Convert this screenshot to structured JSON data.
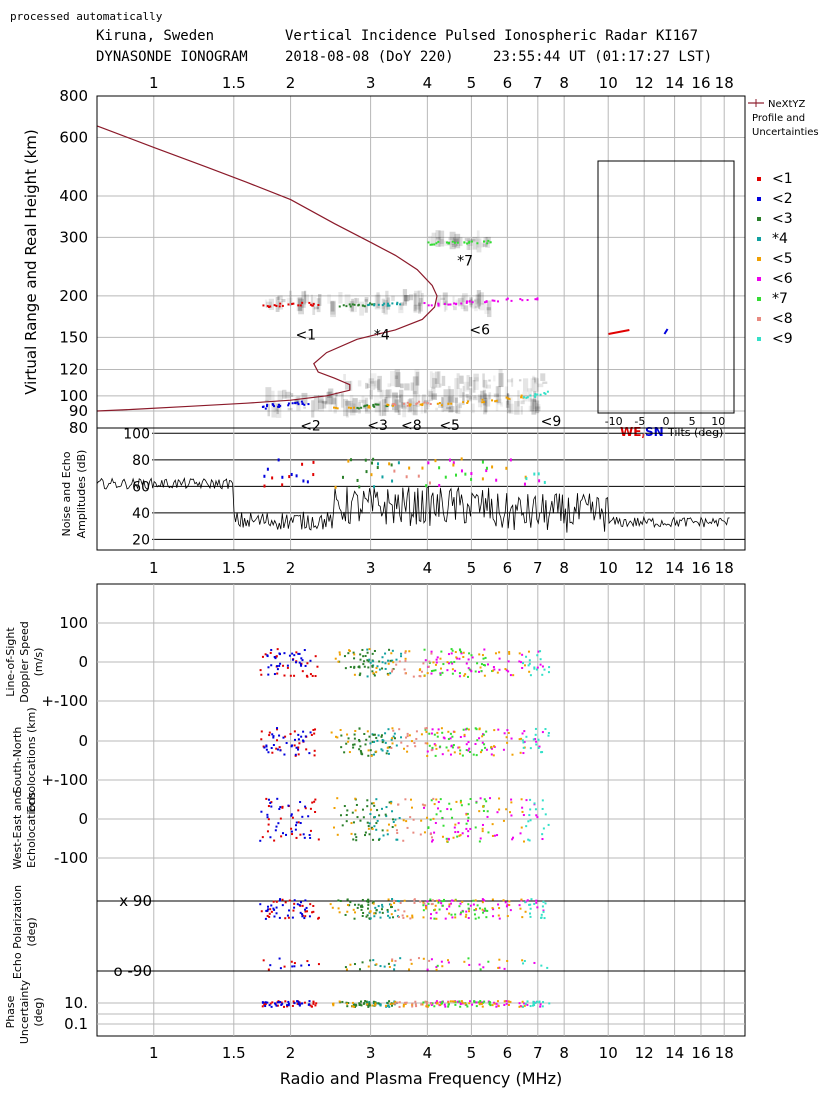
{
  "header": {
    "note": "processed automatically",
    "line1_left": "Kiruna, Sweden",
    "line1_right": "Vertical Incidence Pulsed Ionospheric Radar KI167",
    "line2_left": "DYNASONDE IONOGRAM",
    "line2_mid": "2018-08-08 (DoY 220)",
    "line2_right": "23:55:44 UT (01:17:27 LST)"
  },
  "colors": {
    "r1": "#e00000",
    "r2": "#0000dd",
    "r3": "#2a7f2a",
    "r4": "#10a0a0",
    "r5": "#f0a000",
    "r6": "#ee00ee",
    "r7": "#33dd33",
    "r8": "#e88a80",
    "r9": "#33e0c8",
    "profile": "#8b1a2a"
  },
  "chart_data": [
    {
      "type": "scatter",
      "name": "ionogram",
      "xscale": "log",
      "yscale": "log",
      "xlim": [
        0.75,
        20
      ],
      "ylim": [
        80,
        800
      ],
      "xticks": [
        "1",
        "1.5",
        "2",
        "3",
        "4",
        "5",
        "6",
        "7",
        "8",
        "10",
        "12",
        "14",
        "16",
        "18"
      ],
      "xtick_values": [
        1,
        1.5,
        2,
        3,
        4,
        5,
        6,
        7,
        8,
        10,
        12,
        14,
        16,
        18
      ],
      "yticks": [
        "80",
        "90",
        "100",
        "120",
        "150",
        "200",
        "300",
        "400",
        "600",
        "800"
      ],
      "ytick_values": [
        80,
        90,
        100,
        120,
        150,
        200,
        300,
        400,
        600,
        800
      ],
      "ylabel": "Virtual Range and Real Height (km)",
      "legend": [
        "NeXtYZ",
        "Profile and",
        "Uncertainties"
      ],
      "series_labels": [
        "<1",
        "<2",
        "<3",
        "*4",
        "<5",
        "<6",
        "*7",
        "<8",
        "<9"
      ],
      "annotations": [
        {
          "text": "<1",
          "x": 2.05,
          "y": 148
        },
        {
          "text": "*4",
          "x": 3.05,
          "y": 148
        },
        {
          "text": "<6",
          "x": 4.95,
          "y": 153
        },
        {
          "text": "*7",
          "x": 4.65,
          "y": 247
        },
        {
          "text": "<2",
          "x": 2.1,
          "y": 78.5
        },
        {
          "text": "<3",
          "x": 2.95,
          "y": 79
        },
        {
          "text": "<8",
          "x": 3.5,
          "y": 79
        },
        {
          "text": "<5",
          "x": 4.25,
          "y": 79
        },
        {
          "text": "<9",
          "x": 7.1,
          "y": 81
        }
      ],
      "traces": [
        {
          "series": "<1",
          "x": [
            1.75,
            1.82,
            1.9,
            2.0,
            2.1,
            2.2,
            2.25
          ],
          "y": [
            187,
            188,
            189,
            189,
            190,
            190,
            189
          ]
        },
        {
          "series": "<3",
          "x": [
            2.6,
            2.7,
            2.8,
            2.9,
            3.0
          ],
          "y": [
            189,
            188,
            188,
            189,
            190
          ]
        },
        {
          "series": "*4",
          "x": [
            3.0,
            3.1,
            3.2,
            3.3,
            3.4
          ],
          "y": [
            189,
            189,
            190,
            190,
            191
          ]
        },
        {
          "series": "<6",
          "x": [
            4.0,
            4.2,
            4.4,
            4.6,
            4.8,
            5.0,
            5.3,
            5.6,
            6.0,
            6.5,
            7.0
          ],
          "y": [
            190,
            190,
            191,
            191,
            192,
            193,
            194,
            195,
            196,
            197,
            198
          ]
        },
        {
          "series": "*7",
          "x": [
            4.0,
            4.2,
            4.4,
            4.6,
            4.8,
            5.0,
            5.2,
            5.4
          ],
          "y": [
            289,
            290,
            290,
            291,
            291,
            292,
            292,
            293
          ]
        },
        {
          "series": "<2",
          "x": [
            1.75,
            1.8,
            1.85,
            1.9,
            2.0,
            2.05,
            2.1,
            2.15
          ],
          "y": [
            93,
            94,
            95,
            94,
            95,
            96,
            95,
            96
          ]
        },
        {
          "series": "<3",
          "x": [
            2.8,
            2.9,
            3.0,
            3.1,
            3.3
          ],
          "y": [
            93,
            94,
            94,
            95,
            94
          ]
        },
        {
          "series": "<5",
          "x": [
            2.5,
            2.7,
            3.0,
            3.3,
            3.6,
            3.9,
            4.2,
            4.5,
            4.8,
            5.2,
            5.6,
            6.0,
            6.5
          ],
          "y": [
            92,
            92,
            93,
            94,
            94,
            95,
            95,
            96,
            96,
            97,
            98,
            99,
            100
          ]
        },
        {
          "series": "<8",
          "x": [
            3.4,
            3.6,
            3.8,
            4.0
          ],
          "y": [
            95,
            95,
            96,
            96
          ]
        },
        {
          "series": "<9",
          "x": [
            6.6,
            6.8,
            7.0,
            7.2
          ],
          "y": [
            100,
            101,
            102,
            103
          ]
        }
      ],
      "profile": {
        "x": [
          0.75,
          1.0,
          1.3,
          1.6,
          2.0,
          2.5,
          3.0,
          3.4,
          3.8,
          4.1,
          4.2,
          4.15,
          3.9,
          3.4,
          2.8,
          2.4,
          2.25,
          2.3,
          2.5,
          2.7,
          2.7,
          2.4,
          2.0,
          1.6,
          1.2,
          0.9,
          0.75
        ],
        "y": [
          650,
          560,
          490,
          440,
          390,
          330,
          290,
          265,
          240,
          215,
          200,
          185,
          170,
          158,
          148,
          135,
          125,
          118,
          113,
          108,
          104,
          100,
          97,
          95,
          93,
          91,
          90
        ]
      },
      "inset": {
        "xlabel_we": "WE,",
        "xlabel_sn": "SN",
        "xlabel_rest": "Tilts (deg)",
        "xticks": [
          "-10",
          "-5",
          "0",
          "5",
          "10"
        ],
        "xtick_values": [
          -10,
          -5,
          0,
          5,
          10
        ],
        "xlim": [
          -13,
          13
        ]
      }
    },
    {
      "type": "line",
      "name": "amplitudes",
      "ylabel": [
        "Noise and Echo",
        "Amplitudes (dB)"
      ],
      "ylim": [
        12,
        104
      ],
      "yticks": [
        "20",
        "40",
        "60",
        "80",
        "100"
      ],
      "ytick_values": [
        20,
        40,
        60,
        80,
        100
      ]
    },
    {
      "type": "scatter",
      "name": "doppler",
      "panel_ylabels": [
        {
          "lines": [
            "Line-of-Sight",
            "Doppler Speed",
            "(m/s)"
          ]
        },
        {
          "lines": [
            "South-North",
            "Echolocations (km)"
          ]
        },
        {
          "lines": [
            "West-East   and",
            "Echolocations"
          ]
        },
        {
          "lines": [
            "Echo Polarization",
            "(deg)"
          ]
        },
        {
          "lines": [
            "Phase",
            "Uncertainty",
            "(deg)"
          ]
        }
      ],
      "row_labels": [
        "100",
        "0",
        "+-100",
        "0",
        "+-100",
        "0",
        "-100",
        "x 90",
        "o -90",
        "10.",
        "0.1"
      ],
      "xlabel": "Radio and Plasma Frequency (MHz)"
    }
  ]
}
